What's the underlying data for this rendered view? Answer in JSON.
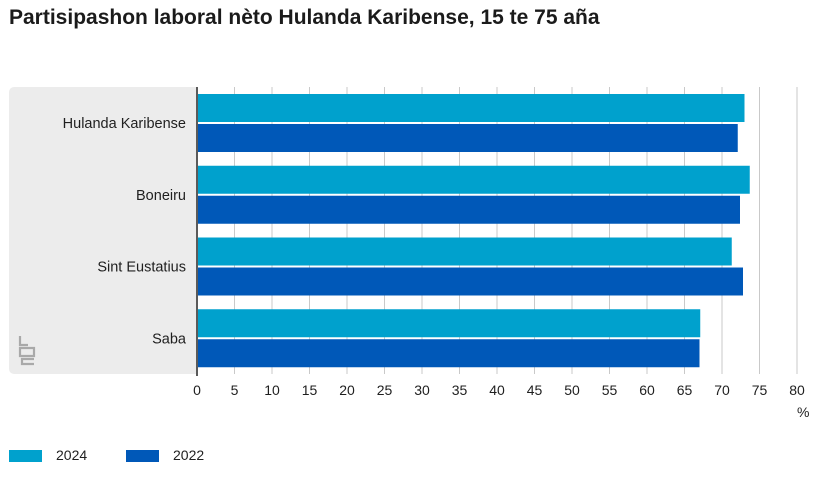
{
  "title": "Partisipashon laboral nèto Hulanda Karibense, 15 te 75 aña",
  "colors": {
    "series_2024": "#00a1cd",
    "series_2022": "#0058b8",
    "grid": "#c9c9c9",
    "axis": "#5a5a5a",
    "plot_bg": "#ececec"
  },
  "chart_data": {
    "type": "bar",
    "orientation": "horizontal",
    "title": "Partisipashon laboral nèto Hulanda Karibense, 15 te 75 aña",
    "categories": [
      "Hulanda Karibense",
      "Boneiru",
      "Sint Eustatius",
      "Saba"
    ],
    "series": [
      {
        "name": "2024",
        "values": [
          73.0,
          73.7,
          71.3,
          67.1
        ]
      },
      {
        "name": "2022",
        "values": [
          72.1,
          72.4,
          72.8,
          67.0
        ]
      }
    ],
    "xlim": [
      0,
      80
    ],
    "xticks": [
      "0",
      "5",
      "10",
      "15",
      "20",
      "25",
      "30",
      "35",
      "40",
      "45",
      "50",
      "55",
      "60",
      "65",
      "70",
      "75",
      "80"
    ],
    "xunit": "%",
    "grid": true,
    "legend": "bottom-left"
  },
  "legend": {
    "items": [
      {
        "label": "2024"
      },
      {
        "label": "2022"
      }
    ]
  },
  "logo_icon": "cbs-logo-icon"
}
